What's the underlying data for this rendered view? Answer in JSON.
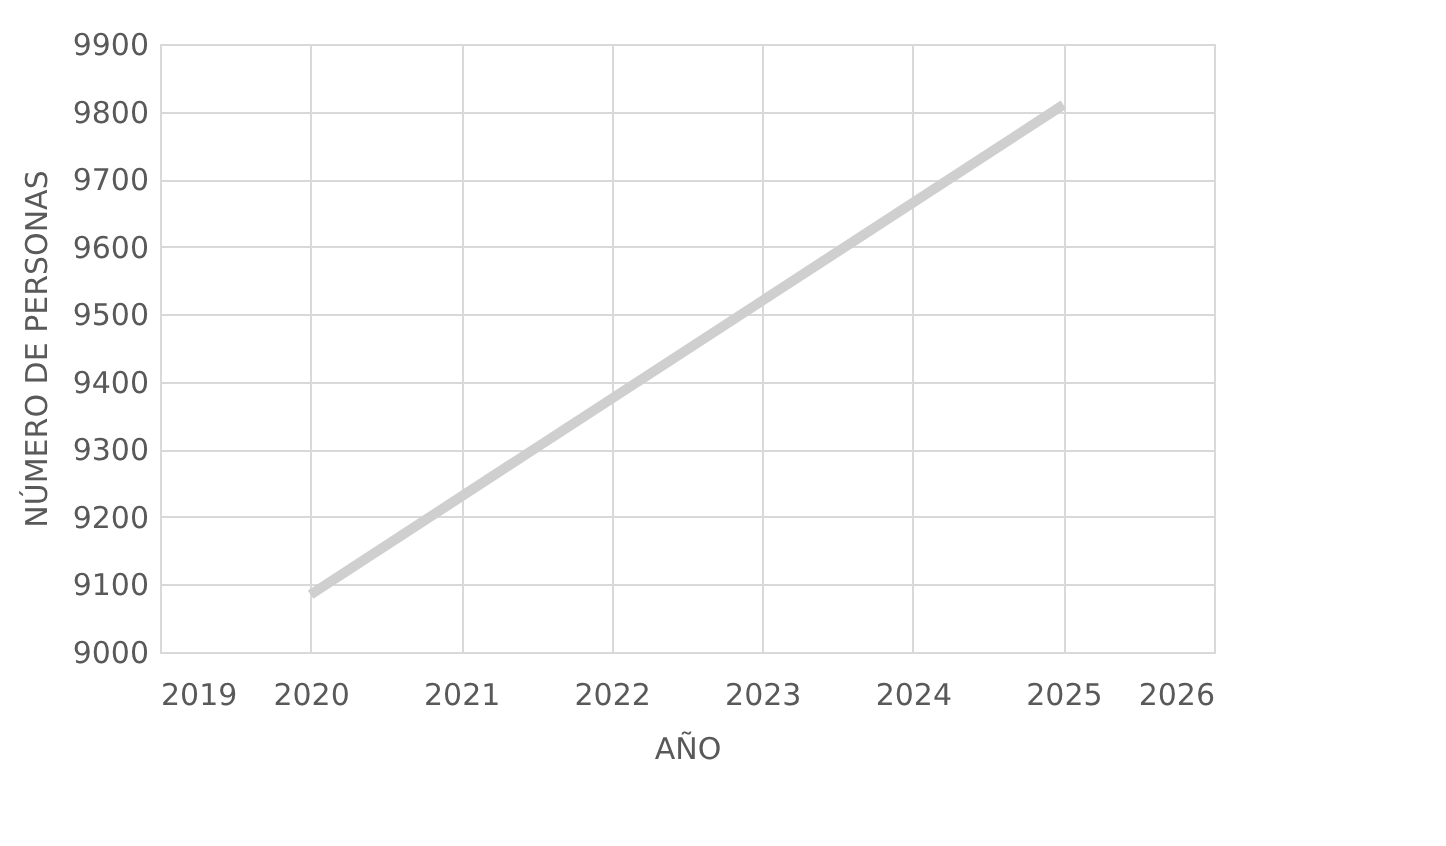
{
  "chart_data": {
    "type": "line",
    "xlabel": "AÑO",
    "ylabel": "NÚMERO DE PERSONAS",
    "x": [
      2020,
      2025
    ],
    "series": [
      {
        "color": "#cfcfcf",
        "values": [
          9085,
          9810
        ]
      }
    ],
    "xlim": [
      2019,
      2026
    ],
    "xticks": [
      2019,
      2020,
      2021,
      2022,
      2023,
      2024,
      2025,
      2026
    ],
    "ylim": [
      9000,
      9900
    ],
    "yticks": [
      9000,
      9100,
      9200,
      9300,
      9400,
      9500,
      9600,
      9700,
      9800,
      9900
    ],
    "grid": true,
    "marker": "none",
    "line_style": "solid"
  }
}
